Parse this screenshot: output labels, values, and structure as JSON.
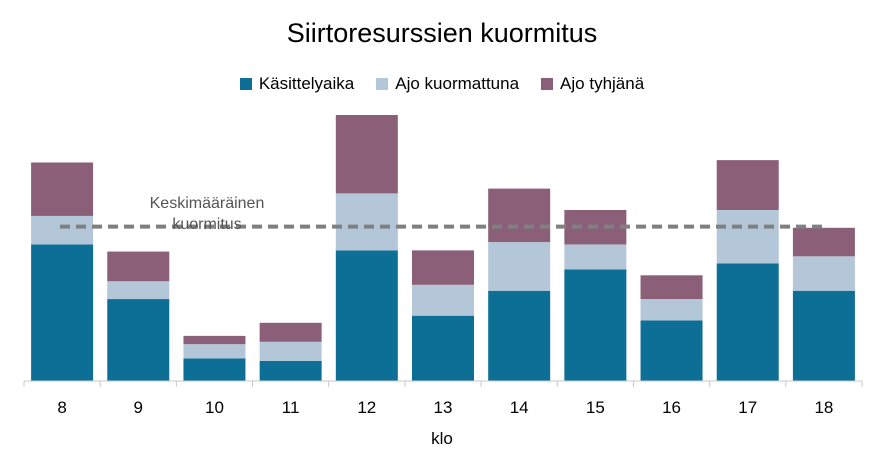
{
  "chart_data": {
    "type": "bar",
    "stacked": true,
    "title": "Siirtoresurssien kuormitus",
    "xlabel": "klo",
    "ylabel": "",
    "categories": [
      "8",
      "9",
      "10",
      "11",
      "12",
      "13",
      "14",
      "15",
      "16",
      "17",
      "18"
    ],
    "series": [
      {
        "name": "Käsittelyaika",
        "color": "#0E6F96",
        "values": [
          115,
          69,
          19,
          17,
          110,
          55,
          76,
          94,
          51,
          99,
          76
        ]
      },
      {
        "name": "Ajo kuormattuna",
        "color": "#B4C7D9",
        "values": [
          24,
          15,
          12,
          16,
          48,
          26,
          41,
          21,
          18,
          45,
          29
        ]
      },
      {
        "name": "Ajo tyhjänä",
        "color": "#8B5F77",
        "values": [
          45,
          25,
          7,
          16,
          66,
          29,
          45,
          29,
          20,
          42,
          24
        ]
      }
    ],
    "average_line": {
      "label": "Keskimääräinen kuormitus",
      "value": 130,
      "color": "#808080",
      "style": "dashed"
    },
    "ylim": [
      0,
      240
    ],
    "grid": false,
    "legend": "top-center"
  }
}
